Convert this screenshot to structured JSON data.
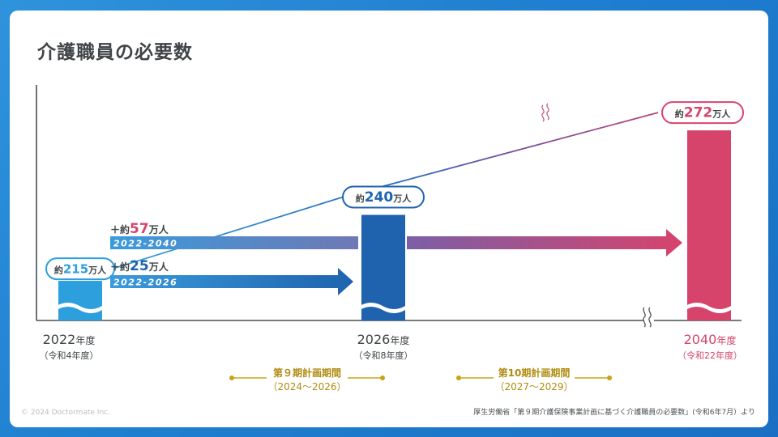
{
  "title": "介護職員の必要数",
  "copyright": "© 2024 Doctormate Inc.",
  "source": "厚生労働省「第９期介護保険事業計画に基づく介護職員の必要数」(令和6年7月）より",
  "colors": {
    "y2022": "#2d9fdd",
    "y2026": "#1f63ae",
    "y2040": "#d6446c",
    "gold": "#c9a31a",
    "axis": "#4a4f53"
  },
  "chart_data": {
    "type": "bar",
    "categories": [
      "2022年度",
      "2026年度",
      "2040年度"
    ],
    "category_sublabels": [
      "（令和4年度）",
      "（令和8年度）",
      "（令和22年度）"
    ],
    "values": [
      215,
      240,
      272
    ],
    "value_labels": [
      {
        "prefix": "約",
        "number": "215",
        "unit": "万人"
      },
      {
        "prefix": "約",
        "number": "240",
        "unit": "万人"
      },
      {
        "prefix": "約",
        "number": "272",
        "unit": "万人"
      }
    ],
    "axis_break": true,
    "increments": [
      {
        "prefix": "＋約",
        "number": "57",
        "unit": "万人",
        "range": "2022-2040",
        "value": 57
      },
      {
        "prefix": "＋約",
        "number": "25",
        "unit": "万人",
        "range": "2022-2026",
        "value": 25
      }
    ],
    "periods": [
      {
        "title": "第９期計画期間",
        "years": "（2024〜2026）"
      },
      {
        "title": "第10期計画期間",
        "years": "（2027〜2029）"
      }
    ]
  }
}
